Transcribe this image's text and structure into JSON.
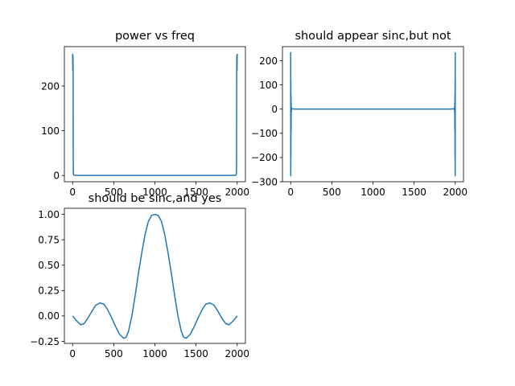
{
  "chart_data": [
    {
      "type": "line",
      "title": "power vs freq",
      "xlim": [
        -100,
        2100
      ],
      "ylim": [
        -14,
        288
      ],
      "xticks": [
        0,
        500,
        1000,
        1500,
        2000
      ],
      "xtick_labels": [
        "0",
        "500",
        "1000",
        "1500",
        "2000"
      ],
      "yticks": [
        0,
        100,
        200
      ],
      "ytick_labels": [
        "0",
        "100",
        "200"
      ],
      "color": "#1f77b4",
      "series": [
        {
          "x": [
            0,
            2,
            4,
            6,
            8,
            10,
            14,
            20,
            50,
            200,
            500,
            1000,
            1500,
            1800,
            1950,
            1980,
            1986,
            1990,
            1992,
            1994,
            1996,
            1998,
            2000
          ],
          "values": [
            272,
            235,
            268,
            240,
            20,
            4,
            1,
            0.3,
            0.1,
            0.1,
            0.1,
            0.1,
            0.1,
            0.1,
            0.1,
            0.3,
            1,
            4,
            20,
            240,
            268,
            235,
            272
          ]
        }
      ]
    },
    {
      "type": "line",
      "title": "should appear sinc,but not",
      "xlim": [
        -100,
        2100
      ],
      "ylim": [
        -300,
        258
      ],
      "xticks": [
        0,
        500,
        1000,
        1500,
        2000
      ],
      "xtick_labels": [
        "0",
        "500",
        "1000",
        "1500",
        "2000"
      ],
      "yticks": [
        -300,
        -200,
        -100,
        0,
        100,
        200
      ],
      "ytick_labels": [
        "−300",
        "−200",
        "−100",
        "0",
        "100",
        "200"
      ],
      "color": "#1f77b4",
      "series": [
        {
          "x": [
            0,
            1,
            2,
            3,
            4,
            5,
            6,
            8,
            10,
            14,
            20,
            50,
            200,
            500,
            1000,
            1500,
            1800,
            1950,
            1980,
            1986,
            1990,
            1992,
            1994,
            1995,
            1996,
            1997,
            1998,
            1999,
            2000
          ],
          "values": [
            235,
            -275,
            120,
            -200,
            60,
            -90,
            25,
            -12,
            5,
            2,
            1,
            0,
            0,
            0,
            0,
            0,
            0,
            0,
            1,
            2,
            5,
            -12,
            25,
            -90,
            60,
            -200,
            120,
            -275,
            235
          ]
        }
      ]
    },
    {
      "type": "line",
      "title": "should be sinc,and yes",
      "xlim": [
        -100,
        2100
      ],
      "ylim": [
        -0.27,
        1.06
      ],
      "xticks": [
        0,
        500,
        1000,
        1500,
        2000
      ],
      "xtick_labels": [
        "0",
        "500",
        "1000",
        "1500",
        "2000"
      ],
      "yticks": [
        -0.25,
        0,
        0.25,
        0.5,
        0.75,
        1.0
      ],
      "ytick_labels": [
        "−0.25",
        "0.00",
        "0.25",
        "0.50",
        "0.75",
        "1.00"
      ],
      "color": "#1f77b4",
      "series": [
        {
          "x": [
            0,
            50,
            100,
            140,
            180,
            230,
            280,
            330,
            380,
            420,
            470,
            520,
            570,
            620,
            650,
            680,
            720,
            760,
            800,
            840,
            880,
            920,
            960,
            1000,
            1040,
            1080,
            1120,
            1160,
            1200,
            1240,
            1280,
            1320,
            1350,
            1380,
            1430,
            1480,
            1530,
            1580,
            1620,
            1670,
            1720,
            1770,
            1820,
            1860,
            1900,
            1950,
            2000
          ],
          "values": [
            0.0,
            -0.05,
            -0.087,
            -0.075,
            -0.03,
            0.04,
            0.105,
            0.128,
            0.117,
            0.07,
            -0.01,
            -0.1,
            -0.18,
            -0.22,
            -0.21,
            -0.15,
            0.0,
            0.2,
            0.42,
            0.62,
            0.8,
            0.93,
            0.99,
            1.0,
            0.99,
            0.93,
            0.8,
            0.62,
            0.42,
            0.2,
            0.0,
            -0.15,
            -0.21,
            -0.22,
            -0.18,
            -0.1,
            -0.01,
            0.07,
            0.117,
            0.128,
            0.105,
            0.04,
            -0.03,
            -0.075,
            -0.087,
            -0.05,
            0.0
          ]
        }
      ]
    }
  ]
}
